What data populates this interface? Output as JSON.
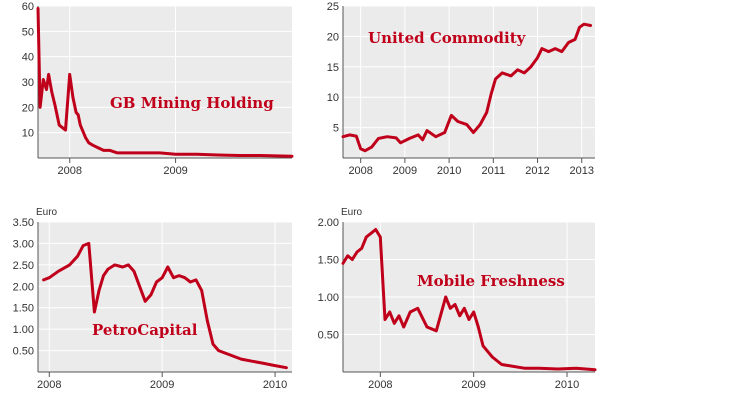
{
  "chart_data": [
    {
      "type": "line",
      "title": "GB Mining Holding",
      "ylabel": "",
      "unit": "",
      "ylim": [
        0,
        60
      ],
      "yticks": [
        10,
        20,
        30,
        40,
        50,
        60
      ],
      "xlim": [
        2007.7,
        2010.1
      ],
      "xticks": [
        {
          "label": "2008",
          "value": 2008.0
        },
        {
          "label": "2009",
          "value": 2009.0
        }
      ],
      "series": [
        {
          "x": [
            2007.7,
            2007.72,
            2007.75,
            2007.78,
            2007.8,
            2007.83,
            2007.86,
            2007.9,
            2007.93,
            2007.96,
            2007.98,
            2008.0,
            2008.03,
            2008.06,
            2008.08,
            2008.1,
            2008.12,
            2008.15,
            2008.18,
            2008.22,
            2008.27,
            2008.32,
            2008.38,
            2008.45,
            2008.55,
            2008.65,
            2008.75,
            2008.85,
            2009.0,
            2009.2,
            2009.4,
            2009.6,
            2009.8,
            2010.0,
            2010.1
          ],
          "y": [
            59,
            20,
            31,
            27,
            33,
            26,
            21,
            13,
            12,
            11,
            22,
            33,
            24,
            18,
            17,
            13,
            11,
            8,
            6,
            5,
            4,
            3,
            3,
            2,
            2,
            2,
            2,
            2,
            1.5,
            1.5,
            1.2,
            1,
            1,
            0.8,
            0.7
          ]
        }
      ]
    },
    {
      "type": "line",
      "title": "United Commodity",
      "ylabel": "",
      "unit": "",
      "ylim": [
        0,
        25
      ],
      "yticks": [
        5,
        10,
        15,
        20,
        25
      ],
      "xlim": [
        2007.6,
        2013.3
      ],
      "xticks": [
        {
          "label": "2008",
          "value": 2008.0
        },
        {
          "label": "2009",
          "value": 2009.0
        },
        {
          "label": "2010",
          "value": 2010.0
        },
        {
          "label": "2011",
          "value": 2011.0
        },
        {
          "label": "2012",
          "value": 2012.0
        },
        {
          "label": "2013",
          "value": 2013.0
        }
      ],
      "series": [
        {
          "x": [
            2007.6,
            2007.75,
            2007.9,
            2008.0,
            2008.1,
            2008.25,
            2008.4,
            2008.6,
            2008.8,
            2008.9,
            2009.1,
            2009.3,
            2009.4,
            2009.5,
            2009.7,
            2009.9,
            2010.05,
            2010.2,
            2010.4,
            2010.55,
            2010.7,
            2010.85,
            2010.95,
            2011.05,
            2011.2,
            2011.4,
            2011.55,
            2011.7,
            2011.85,
            2012.0,
            2012.1,
            2012.25,
            2012.4,
            2012.55,
            2012.7,
            2012.85,
            2012.95,
            2013.05,
            2013.2
          ],
          "y": [
            3.5,
            3.8,
            3.6,
            1.5,
            1.2,
            1.8,
            3.2,
            3.5,
            3.3,
            2.5,
            3.2,
            3.8,
            3.0,
            4.5,
            3.5,
            4.2,
            7.0,
            6.0,
            5.5,
            4.2,
            5.5,
            7.5,
            10.5,
            13.0,
            14.0,
            13.5,
            14.5,
            14.0,
            15.0,
            16.5,
            18.0,
            17.5,
            18.0,
            17.5,
            19.0,
            19.5,
            21.5,
            22.0,
            21.8
          ]
        }
      ]
    },
    {
      "type": "line",
      "title": "PetroCapital",
      "ylabel": "",
      "unit": "Euro",
      "ylim": [
        0,
        3.5
      ],
      "yticks": [
        0.5,
        1.0,
        1.5,
        2.0,
        2.5,
        3.0,
        3.5
      ],
      "ytick_labels": [
        "0.50",
        "1.00",
        "1.50",
        "2.00",
        "2.50",
        "3.00",
        "3.50"
      ],
      "xlim": [
        2007.9,
        2010.15
      ],
      "xticks": [
        {
          "label": "2008",
          "value": 2008.0
        },
        {
          "label": "2009",
          "value": 2009.0
        },
        {
          "label": "2010",
          "value": 2010.0
        }
      ],
      "series": [
        {
          "x": [
            2007.95,
            2008.0,
            2008.08,
            2008.18,
            2008.25,
            2008.3,
            2008.35,
            2008.4,
            2008.44,
            2008.48,
            2008.52,
            2008.58,
            2008.65,
            2008.7,
            2008.75,
            2008.8,
            2008.85,
            2008.9,
            2008.95,
            2009.0,
            2009.05,
            2009.1,
            2009.15,
            2009.2,
            2009.25,
            2009.3,
            2009.35,
            2009.4,
            2009.45,
            2009.5,
            2009.6,
            2009.7,
            2009.8,
            2009.9,
            2010.0,
            2010.1
          ],
          "y": [
            2.15,
            2.2,
            2.35,
            2.5,
            2.7,
            2.95,
            3.0,
            1.4,
            1.9,
            2.25,
            2.4,
            2.5,
            2.45,
            2.5,
            2.35,
            2.0,
            1.65,
            1.8,
            2.1,
            2.2,
            2.45,
            2.2,
            2.25,
            2.2,
            2.1,
            2.15,
            1.9,
            1.2,
            0.65,
            0.5,
            0.4,
            0.3,
            0.25,
            0.2,
            0.15,
            0.1
          ]
        }
      ]
    },
    {
      "type": "line",
      "title": "Mobile Freshness",
      "ylabel": "",
      "unit": "Euro",
      "ylim": [
        0,
        2.0
      ],
      "yticks": [
        0.5,
        1.0,
        1.5,
        2.0
      ],
      "ytick_labels": [
        "0.50",
        "1.00",
        "1.50",
        "2.00"
      ],
      "xlim": [
        2007.6,
        2010.3
      ],
      "xticks": [
        {
          "label": "2008",
          "value": 2008.0
        },
        {
          "label": "2009",
          "value": 2009.0
        },
        {
          "label": "2010",
          "value": 2010.0
        }
      ],
      "series": [
        {
          "x": [
            2007.6,
            2007.65,
            2007.7,
            2007.75,
            2007.8,
            2007.85,
            2007.9,
            2007.95,
            2008.0,
            2008.05,
            2008.1,
            2008.15,
            2008.2,
            2008.25,
            2008.32,
            2008.4,
            2008.5,
            2008.6,
            2008.7,
            2008.75,
            2008.8,
            2008.85,
            2008.9,
            2008.95,
            2009.0,
            2009.05,
            2009.1,
            2009.2,
            2009.3,
            2009.4,
            2009.55,
            2009.7,
            2009.9,
            2010.1,
            2010.3
          ],
          "y": [
            1.45,
            1.55,
            1.5,
            1.6,
            1.65,
            1.8,
            1.85,
            1.9,
            1.8,
            0.7,
            0.8,
            0.65,
            0.75,
            0.6,
            0.8,
            0.85,
            0.6,
            0.55,
            1.0,
            0.85,
            0.9,
            0.75,
            0.85,
            0.7,
            0.8,
            0.6,
            0.35,
            0.2,
            0.1,
            0.08,
            0.05,
            0.05,
            0.04,
            0.05,
            0.03
          ]
        }
      ]
    }
  ]
}
